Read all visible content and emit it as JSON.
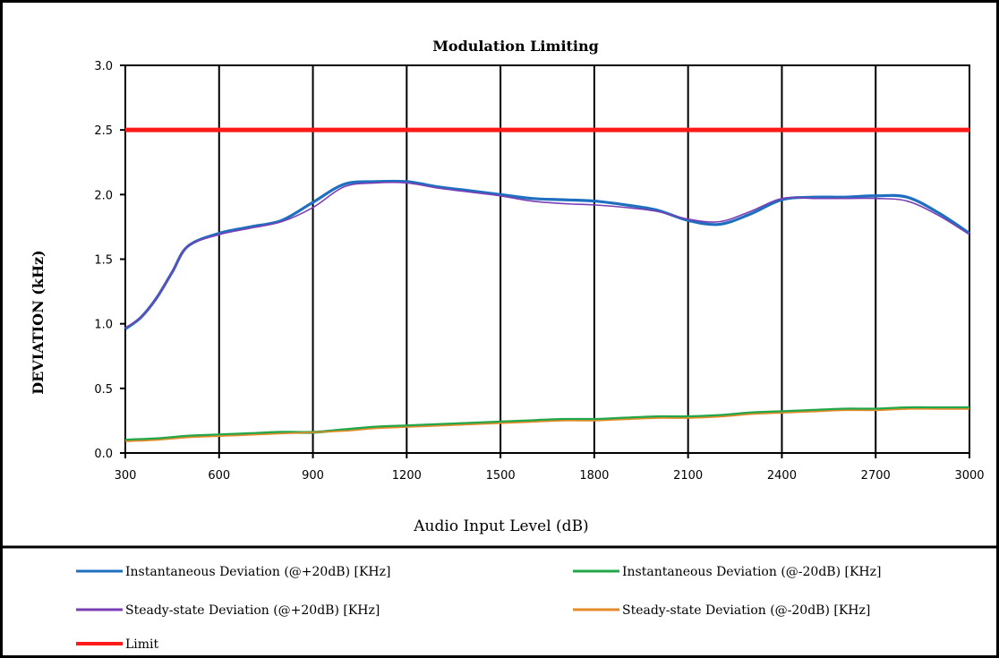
{
  "chart_data": {
    "type": "line",
    "title": "Modulation Limiting",
    "xlabel": "Audio Input Level (dB)",
    "ylabel": "DEVIATION (kHz)",
    "xlim": [
      300,
      3000
    ],
    "ylim": [
      0.0,
      3.0
    ],
    "x_ticks": [
      300,
      600,
      900,
      1200,
      1500,
      1800,
      2100,
      2400,
      2700,
      3000
    ],
    "x_tick_labels": [
      "300",
      "600",
      "900",
      "1200",
      "1500",
      "1800",
      "2100",
      "2400",
      "2700",
      "3000"
    ],
    "y_ticks": [
      0.0,
      0.5,
      1.0,
      1.5,
      2.0,
      2.5,
      3.0
    ],
    "y_tick_labels": [
      "0.0",
      "0.5",
      "1.0",
      "1.5",
      "2.0",
      "2.5",
      "3.0"
    ],
    "grid": "vertical",
    "legend_position": "bottom",
    "series": [
      {
        "name": "Instantaneous Deviation (@+20dB) [KHz]",
        "color": "#1f6fc0",
        "x": [
          300,
          350,
          400,
          450,
          500,
          600,
          700,
          800,
          900,
          1000,
          1100,
          1200,
          1300,
          1400,
          1500,
          1600,
          1700,
          1800,
          1900,
          2000,
          2100,
          2200,
          2300,
          2400,
          2500,
          2600,
          2700,
          2800,
          2900,
          3000
        ],
        "y": [
          0.96,
          1.05,
          1.2,
          1.4,
          1.6,
          1.7,
          1.75,
          1.8,
          1.94,
          2.08,
          2.1,
          2.1,
          2.06,
          2.03,
          2.0,
          1.97,
          1.96,
          1.95,
          1.92,
          1.88,
          1.8,
          1.77,
          1.85,
          1.96,
          1.98,
          1.98,
          1.99,
          1.98,
          1.86,
          1.7
        ]
      },
      {
        "name": "Instantaneous Deviation (@-20dB) [KHz]",
        "color": "#22a84a",
        "x": [
          300,
          400,
          500,
          600,
          700,
          800,
          900,
          1000,
          1100,
          1200,
          1300,
          1400,
          1500,
          1600,
          1700,
          1800,
          1900,
          2000,
          2100,
          2200,
          2300,
          2400,
          2500,
          2600,
          2700,
          2800,
          2900,
          3000
        ],
        "y": [
          0.1,
          0.11,
          0.13,
          0.14,
          0.15,
          0.16,
          0.16,
          0.18,
          0.2,
          0.21,
          0.22,
          0.23,
          0.24,
          0.25,
          0.26,
          0.26,
          0.27,
          0.28,
          0.28,
          0.29,
          0.31,
          0.32,
          0.33,
          0.34,
          0.34,
          0.35,
          0.35,
          0.35
        ]
      },
      {
        "name": "Steady-state Deviation (@+20dB) [KHz]",
        "color": "#7a3fb5",
        "x": [
          300,
          350,
          400,
          450,
          500,
          600,
          700,
          800,
          900,
          1000,
          1100,
          1200,
          1300,
          1400,
          1500,
          1600,
          1700,
          1800,
          1900,
          2000,
          2100,
          2200,
          2300,
          2400,
          2500,
          2600,
          2700,
          2800,
          2900,
          3000
        ],
        "y": [
          0.97,
          1.05,
          1.2,
          1.4,
          1.6,
          1.69,
          1.74,
          1.79,
          1.9,
          2.06,
          2.09,
          2.09,
          2.05,
          2.02,
          1.99,
          1.95,
          1.93,
          1.92,
          1.9,
          1.87,
          1.81,
          1.79,
          1.87,
          1.97,
          1.97,
          1.97,
          1.97,
          1.95,
          1.84,
          1.69
        ]
      },
      {
        "name": "Steady-state Deviation (@-20dB) [KHz]",
        "color": "#e58a2a",
        "x": [
          300,
          400,
          500,
          600,
          700,
          800,
          900,
          1000,
          1100,
          1200,
          1300,
          1400,
          1500,
          1600,
          1700,
          1800,
          1900,
          2000,
          2100,
          2200,
          2300,
          2400,
          2500,
          2600,
          2700,
          2800,
          2900,
          3000
        ],
        "y": [
          0.09,
          0.1,
          0.12,
          0.13,
          0.14,
          0.15,
          0.16,
          0.17,
          0.19,
          0.2,
          0.21,
          0.22,
          0.23,
          0.24,
          0.25,
          0.25,
          0.26,
          0.27,
          0.27,
          0.28,
          0.3,
          0.31,
          0.32,
          0.33,
          0.33,
          0.34,
          0.34,
          0.34
        ]
      },
      {
        "name": "Limit",
        "color": "#ff1a1a",
        "x": [
          300,
          3000
        ],
        "y": [
          2.5,
          2.5
        ]
      }
    ]
  }
}
